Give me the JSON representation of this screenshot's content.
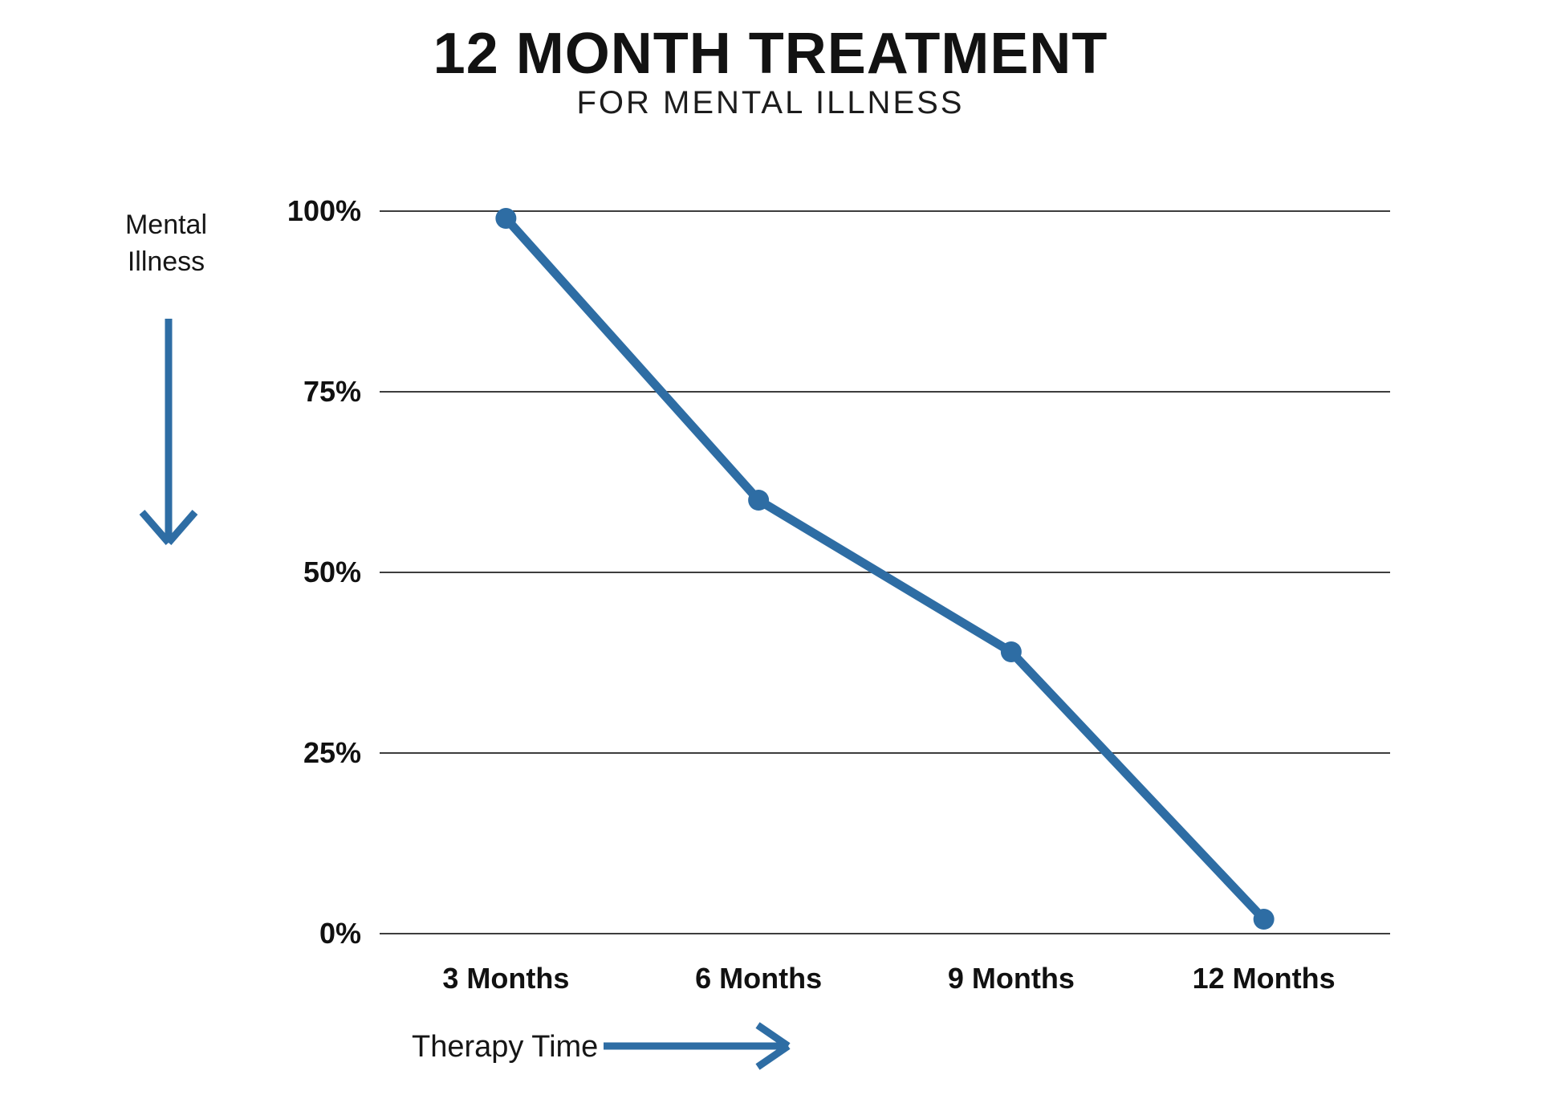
{
  "page": {
    "background": "#ffffff"
  },
  "header": {
    "title": "12 MONTH TREATMENT",
    "subtitle": "FOR MENTAL ILLNESS"
  },
  "y_axis": {
    "label": "Mental\nIllness",
    "arrow_icon": "arrow-down-icon"
  },
  "x_axis": {
    "label": "Therapy Time",
    "arrow_icon": "arrow-right-icon"
  },
  "colors": {
    "accent_blue": "#2e6da4",
    "gridline": "#3d3d3d",
    "text": "#111111"
  },
  "chart_data": {
    "type": "line",
    "title": "12 MONTH TREATMENT",
    "subtitle": "FOR MENTAL ILLNESS",
    "categories": [
      "3 Months",
      "6 Months",
      "9 Months",
      "12 Months"
    ],
    "values": [
      99,
      60,
      39,
      2
    ],
    "series_name": "Mental Illness",
    "xlabel": "Therapy Time",
    "ylabel": "Mental Illness",
    "ylim": [
      0,
      100
    ],
    "yticks": [
      100,
      75,
      50,
      25,
      0
    ],
    "ytick_labels": [
      "100%",
      "75%",
      "50%",
      "25%",
      "0%"
    ],
    "grid": "horizontal",
    "legend": "none",
    "line_color": "#2e6da4",
    "marker": "circle"
  }
}
